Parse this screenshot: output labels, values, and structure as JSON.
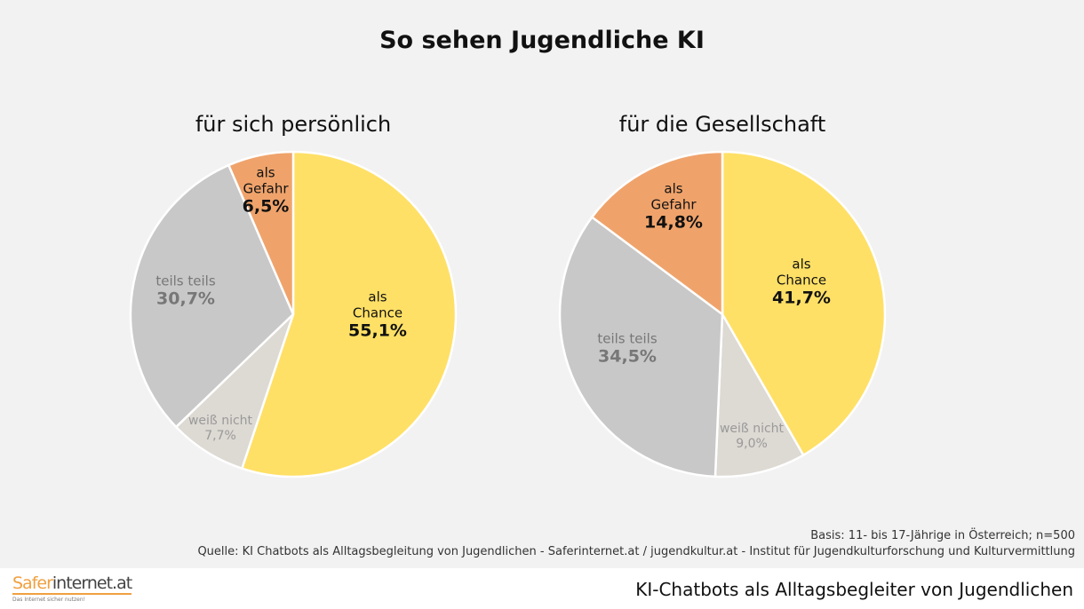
{
  "title": "So sehen Jugendliche KI",
  "colors": {
    "chance": "#FFE066",
    "weiss_nicht": "#DDD9D3",
    "teils_teils": "#C8C8C8",
    "gefahr": "#EFA36B"
  },
  "chart_data": [
    {
      "type": "pie",
      "title": "für sich persönlich",
      "slices": [
        {
          "label": "als Chance",
          "value": 55.1,
          "display": "55,1%"
        },
        {
          "label": "weiß nicht",
          "value": 7.7,
          "display": "7,7%"
        },
        {
          "label": "teils teils",
          "value": 30.7,
          "display": "30,7%"
        },
        {
          "label": "als Gefahr",
          "value": 6.5,
          "display": "6,5%"
        }
      ]
    },
    {
      "type": "pie",
      "title": "für die Gesellschaft",
      "slices": [
        {
          "label": "als Chance",
          "value": 41.7,
          "display": "41,7%"
        },
        {
          "label": "weiß nicht",
          "value": 9.0,
          "display": "9,0%"
        },
        {
          "label": "teils teils",
          "value": 34.5,
          "display": "34,5%"
        },
        {
          "label": "als Gefahr",
          "value": 14.8,
          "display": "14,8%"
        }
      ]
    }
  ],
  "labels": {
    "chance": [
      "als",
      "Chance"
    ],
    "gefahr": [
      "als",
      "Gefahr"
    ],
    "teils": "teils teils",
    "weiss": "weiß nicht"
  },
  "basis": "Basis: 11- bis 17-Jährige in Österreich; n=500",
  "source": "Quelle: KI Chatbots als Alltagsbegleitung von Jugendlichen - Saferinternet.at / jugendkultur.at - Institut für Jugendkulturforschung und Kulturvermittlung",
  "footer": {
    "logo_part1": "Safer",
    "logo_part2": "internet.at",
    "logo_tagline": "Das Internet sicher nutzen!",
    "title": "KI-Chatbots als Alltagsbegleiter von Jugendlichen"
  }
}
